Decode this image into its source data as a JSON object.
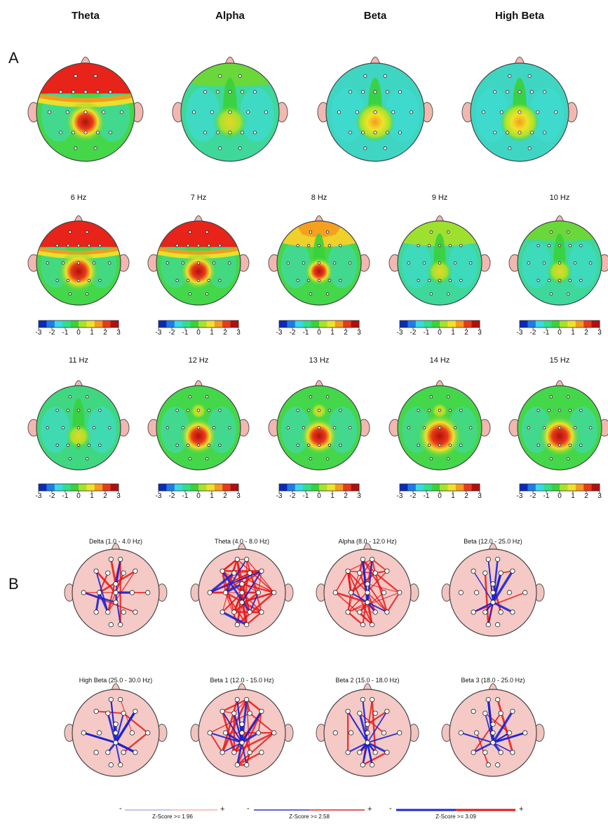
{
  "panel_a": {
    "label": "A",
    "band_titles": [
      "Theta",
      "Alpha",
      "Beta",
      "High Beta"
    ],
    "hz_rows": [
      [
        "6 Hz",
        "7 Hz",
        "8 Hz",
        "9 Hz",
        "10 Hz"
      ],
      [
        "11 Hz",
        "12 Hz",
        "13 Hz",
        "14 Hz",
        "15 Hz"
      ]
    ],
    "scale_ticks": [
      "-3",
      "-2",
      "-1",
      "0",
      "1",
      "2",
      "3"
    ],
    "scale_colors": [
      "#0a2ab8",
      "#1e7be8",
      "#39d9e6",
      "#2fe08a",
      "#39d23a",
      "#a6e22b",
      "#f0e22a",
      "#f59b1e",
      "#e83a1a",
      "#b00f0f"
    ]
  },
  "panel_b": {
    "label": "B",
    "titles_row1": [
      "Delta (1.0 - 4.0 Hz)",
      "Theta (4.0 - 8.0 Hz)",
      "Alpha (8.0 - 12.0 Hz)",
      "Beta (12.0 - 25.0 Hz)"
    ],
    "titles_row2": [
      "High Beta (25.0 - 30.0 Hz)",
      "Beta 1 (12.0 - 15.0 Hz)",
      "Beta 2 (15.0 - 18.0 Hz)",
      "Beta 3 (18.0 - 25.0 Hz)"
    ],
    "legend": [
      {
        "minus": "-",
        "plus": "+",
        "label": "Z-Score >= 1.96"
      },
      {
        "minus": "-",
        "plus": "+",
        "label": "Z-Score >= 2.58"
      },
      {
        "minus": "-",
        "plus": "+",
        "label": "Z-Score >= 3.09"
      }
    ]
  }
}
